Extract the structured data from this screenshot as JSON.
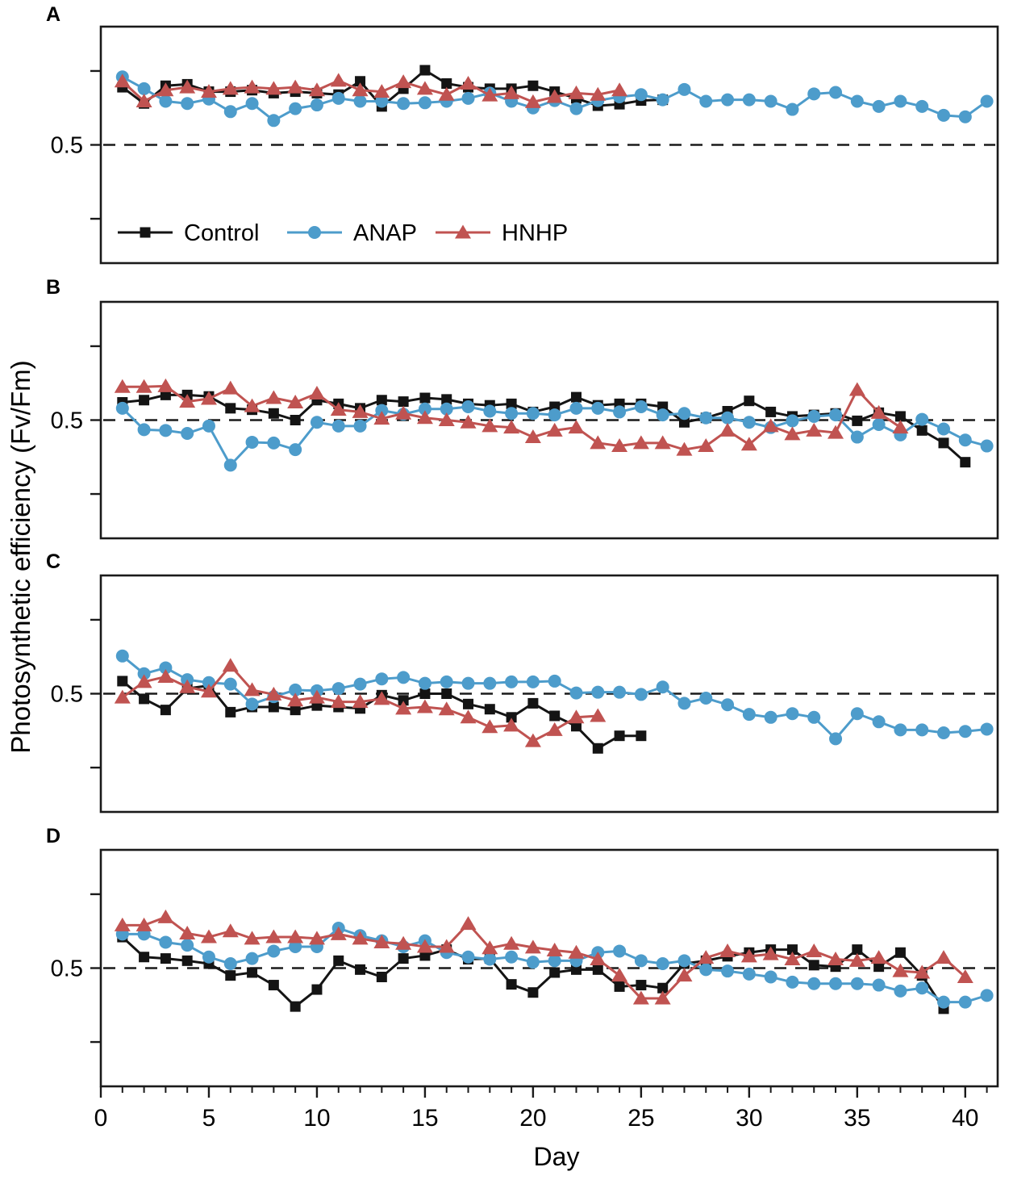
{
  "figure": {
    "y_axis_title": "Photosynthetic efficiency (Fv/Fm)",
    "x_axis_title": "Day",
    "background": "#ffffff",
    "axis_color": "#1a1a1a",
    "colors": {
      "control": "#141414",
      "anap": "#4D9CCB",
      "hnhp": "#C05351"
    }
  },
  "legend": {
    "location": "inside panel A, bottom left",
    "items": [
      {
        "label": "Control",
        "series": "control",
        "marker": "square"
      },
      {
        "label": "ANAP",
        "series": "anap",
        "marker": "circle"
      },
      {
        "label": "HNHP",
        "series": "hnhp",
        "marker": "triangle"
      }
    ]
  },
  "chart_data": [
    {
      "type": "line",
      "label": "A",
      "ylim": [
        0.34,
        0.66
      ],
      "yticks": [
        0.4,
        0.5,
        0.6
      ],
      "ytick_labels": {
        "0.5": "0.5"
      },
      "dashed_reference_y": 0.5,
      "xlim": [
        0,
        41.5
      ],
      "grid": false,
      "series": [
        {
          "name": "Control",
          "color_key": "control",
          "marker": "square",
          "first_day": 1,
          "values": [
            0.578,
            0.556,
            0.58,
            0.582,
            0.572,
            0.572,
            0.574,
            0.57,
            0.572,
            0.57,
            0.568,
            0.586,
            0.552,
            0.576,
            0.601,
            0.583,
            0.578,
            0.576,
            0.576,
            0.58,
            0.572,
            0.563,
            0.553,
            0.555,
            0.56,
            0.561
          ]
        },
        {
          "name": "ANAP",
          "color_key": "anap",
          "marker": "circle",
          "first_day": 1,
          "values": [
            0.592,
            0.576,
            0.559,
            0.556,
            0.562,
            0.545,
            0.556,
            0.533,
            0.549,
            0.554,
            0.563,
            0.559,
            0.559,
            0.556,
            0.557,
            0.559,
            0.563,
            0.57,
            0.559,
            0.55,
            0.56,
            0.549,
            0.56,
            0.565,
            0.568,
            0.561,
            0.575,
            0.559,
            0.561,
            0.561,
            0.559,
            0.548,
            0.569,
            0.571,
            0.559,
            0.552,
            0.559,
            0.552,
            0.54,
            0.538,
            0.559
          ]
        },
        {
          "name": "HNHP",
          "color_key": "hnhp",
          "marker": "triangle",
          "first_day": 1,
          "values": [
            0.586,
            0.559,
            0.574,
            0.578,
            0.572,
            0.576,
            0.578,
            0.576,
            0.578,
            0.574,
            0.587,
            0.574,
            0.572,
            0.585,
            0.576,
            0.568,
            0.583,
            0.567,
            0.57,
            0.558,
            0.565,
            0.57,
            0.568,
            0.574
          ]
        }
      ]
    },
    {
      "type": "line",
      "label": "B",
      "ylim": [
        0.34,
        0.66
      ],
      "yticks": [
        0.4,
        0.5,
        0.6
      ],
      "ytick_labels": {
        "0.5": "0.5"
      },
      "dashed_reference_y": 0.5,
      "xlim": [
        0,
        41.5
      ],
      "grid": false,
      "series": [
        {
          "name": "Control",
          "color_key": "control",
          "marker": "square",
          "first_day": 1,
          "values": [
            0.524,
            0.527,
            0.534,
            0.534,
            0.532,
            0.516,
            0.514,
            0.509,
            0.5,
            0.527,
            0.522,
            0.516,
            0.527,
            0.525,
            0.53,
            0.528,
            0.522,
            0.52,
            0.522,
            0.511,
            0.518,
            0.531,
            0.52,
            0.522,
            0.522,
            0.518,
            0.497,
            0.503,
            0.512,
            0.526,
            0.511,
            0.505,
            0.507,
            0.509,
            0.499,
            0.51,
            0.505,
            0.486,
            0.469,
            0.443
          ]
        },
        {
          "name": "ANAP",
          "color_key": "anap",
          "marker": "circle",
          "first_day": 1,
          "values": [
            0.516,
            0.487,
            0.486,
            0.482,
            0.492,
            0.439,
            0.47,
            0.469,
            0.46,
            0.497,
            0.492,
            0.492,
            0.513,
            0.508,
            0.515,
            0.515,
            0.518,
            0.512,
            0.509,
            0.509,
            0.507,
            0.516,
            0.516,
            0.511,
            0.518,
            0.507,
            0.509,
            0.503,
            0.503,
            0.497,
            0.49,
            0.499,
            0.505,
            0.507,
            0.477,
            0.494,
            0.48,
            0.501,
            0.488,
            0.473,
            0.465
          ]
        },
        {
          "name": "HNHP",
          "color_key": "hnhp",
          "marker": "triangle",
          "first_day": 1,
          "values": [
            0.545,
            0.545,
            0.546,
            0.525,
            0.529,
            0.543,
            0.519,
            0.53,
            0.524,
            0.536,
            0.514,
            0.511,
            0.502,
            0.509,
            0.503,
            0.5,
            0.497,
            0.492,
            0.49,
            0.477,
            0.486,
            0.49,
            0.469,
            0.465,
            0.469,
            0.469,
            0.46,
            0.465,
            0.486,
            0.467,
            0.492,
            0.481,
            0.486,
            0.483,
            0.541,
            0.51,
            0.49
          ]
        }
      ]
    },
    {
      "type": "line",
      "label": "C",
      "ylim": [
        0.34,
        0.66
      ],
      "yticks": [
        0.4,
        0.5,
        0.6
      ],
      "ytick_labels": {
        "0.5": "0.5"
      },
      "dashed_reference_y": 0.5,
      "xlim": [
        0,
        41.5
      ],
      "grid": false,
      "series": [
        {
          "name": "Control",
          "color_key": "control",
          "marker": "square",
          "first_day": 1,
          "values": [
            0.517,
            0.493,
            0.478,
            0.507,
            0.511,
            0.475,
            0.482,
            0.482,
            0.478,
            0.484,
            0.482,
            0.48,
            0.498,
            0.491,
            0.5,
            0.5,
            0.486,
            0.479,
            0.468,
            0.487,
            0.47,
            0.456,
            0.426,
            0.443,
            0.443
          ]
        },
        {
          "name": "ANAP",
          "color_key": "anap",
          "marker": "circle",
          "first_day": 1,
          "values": [
            0.551,
            0.527,
            0.535,
            0.519,
            0.515,
            0.513,
            0.486,
            0.496,
            0.505,
            0.504,
            0.507,
            0.513,
            0.52,
            0.522,
            0.514,
            0.516,
            0.514,
            0.514,
            0.516,
            0.516,
            0.517,
            0.501,
            0.502,
            0.502,
            0.499,
            0.509,
            0.487,
            0.494,
            0.485,
            0.472,
            0.468,
            0.473,
            0.468,
            0.439,
            0.473,
            0.462,
            0.451,
            0.451,
            0.447,
            0.449,
            0.452
          ]
        },
        {
          "name": "HNHP",
          "color_key": "hnhp",
          "marker": "triangle",
          "first_day": 1,
          "values": [
            0.495,
            0.516,
            0.523,
            0.509,
            0.503,
            0.538,
            0.505,
            0.499,
            0.491,
            0.495,
            0.489,
            0.489,
            0.493,
            0.48,
            0.482,
            0.479,
            0.468,
            0.455,
            0.457,
            0.436,
            0.451,
            0.468,
            0.47
          ]
        }
      ]
    },
    {
      "type": "line",
      "label": "D",
      "ylim": [
        0.34,
        0.66
      ],
      "yticks": [
        0.4,
        0.5,
        0.6
      ],
      "ytick_labels": {
        "0.5": "0.5"
      },
      "dashed_reference_y": 0.5,
      "xlim": [
        0,
        41.5
      ],
      "grid": false,
      "xaxis": {
        "major_ticks": [
          0,
          5,
          10,
          15,
          20,
          25,
          30,
          35,
          40
        ],
        "major_tick_labels": [
          "0",
          "5",
          "10",
          "15",
          "20",
          "25",
          "30",
          "35",
          "40"
        ],
        "minor_tick_interval": 1
      },
      "series": [
        {
          "name": "Control",
          "color_key": "control",
          "marker": "square",
          "first_day": 1,
          "values": [
            0.542,
            0.515,
            0.513,
            0.51,
            0.506,
            0.49,
            0.494,
            0.477,
            0.448,
            0.471,
            0.51,
            0.498,
            0.488,
            0.513,
            0.517,
            0.525,
            0.512,
            0.513,
            0.478,
            0.467,
            0.494,
            0.498,
            0.498,
            0.475,
            0.477,
            0.473,
            0.506,
            0.51,
            0.516,
            0.521,
            0.525,
            0.525,
            0.504,
            0.502,
            0.525,
            0.502,
            0.521,
            0.49,
            0.445
          ]
        },
        {
          "name": "ANAP",
          "color_key": "anap",
          "marker": "circle",
          "first_day": 1,
          "values": [
            0.546,
            0.546,
            0.535,
            0.531,
            0.515,
            0.506,
            0.513,
            0.523,
            0.529,
            0.529,
            0.554,
            0.544,
            0.537,
            0.529,
            0.537,
            0.521,
            0.515,
            0.512,
            0.515,
            0.508,
            0.51,
            0.51,
            0.521,
            0.523,
            0.51,
            0.506,
            0.51,
            0.498,
            0.496,
            0.492,
            0.488,
            0.481,
            0.479,
            0.479,
            0.479,
            0.477,
            0.469,
            0.473,
            0.454,
            0.454,
            0.463
          ]
        },
        {
          "name": "HNHP",
          "color_key": "hnhp",
          "marker": "triangle",
          "first_day": 1,
          "values": [
            0.558,
            0.558,
            0.569,
            0.547,
            0.542,
            0.55,
            0.54,
            0.542,
            0.542,
            0.54,
            0.546,
            0.54,
            0.535,
            0.533,
            0.529,
            0.529,
            0.56,
            0.527,
            0.533,
            0.528,
            0.524,
            0.521,
            0.512,
            0.49,
            0.459,
            0.459,
            0.49,
            0.514,
            0.523,
            0.516,
            0.519,
            0.512,
            0.523,
            0.512,
            0.51,
            0.514,
            0.496,
            0.494,
            0.514,
            0.488
          ]
        }
      ]
    }
  ]
}
